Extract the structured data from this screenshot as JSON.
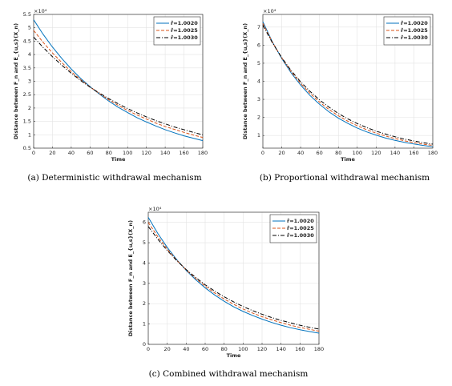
{
  "chart_data": [
    {
      "type": "line",
      "caption": "(a) Deterministic withdrawal mechanism",
      "xlabel": "Time",
      "ylabel": "Distance between F_n and E_{u,s}(X_n)",
      "y_multiplier": "×10⁴",
      "x": [
        0,
        10,
        20,
        30,
        40,
        50,
        60,
        70,
        80,
        90,
        100,
        110,
        120,
        130,
        140,
        150,
        160,
        170,
        180
      ],
      "xlim": [
        0,
        180
      ],
      "xticks": [
        0,
        20,
        40,
        60,
        80,
        100,
        120,
        140,
        160,
        180
      ],
      "ylim": [
        0.5,
        5.5
      ],
      "yticks": [
        0.5,
        1,
        1.5,
        2,
        2.5,
        3,
        3.5,
        4,
        4.5,
        5,
        5.5
      ],
      "grid": true,
      "legend": "upper right",
      "series": [
        {
          "name": "r̂=1.0020",
          "color": "#0072bd",
          "style": "solid",
          "values": [
            5.3,
            4.76,
            4.28,
            3.85,
            3.46,
            3.11,
            2.8,
            2.52,
            2.26,
            2.03,
            1.83,
            1.64,
            1.48,
            1.33,
            1.19,
            1.07,
            0.96,
            0.87,
            0.78
          ]
        },
        {
          "name": "r̂=1.0025",
          "color": "#d95319",
          "style": "dashed",
          "values": [
            4.9,
            4.46,
            4.06,
            3.7,
            3.36,
            3.06,
            2.79,
            2.54,
            2.31,
            2.1,
            1.91,
            1.74,
            1.59,
            1.44,
            1.31,
            1.2,
            1.09,
            0.99,
            0.9
          ]
        },
        {
          "name": "r̂=1.0030",
          "color": "#000000",
          "style": "dashdot",
          "values": [
            4.65,
            4.27,
            3.92,
            3.6,
            3.3,
            3.03,
            2.78,
            2.56,
            2.35,
            2.16,
            1.98,
            1.82,
            1.67,
            1.53,
            1.41,
            1.29,
            1.19,
            1.09,
            1.0
          ]
        }
      ]
    },
    {
      "type": "line",
      "caption": "(b) Proportional withdrawal mechanism",
      "xlabel": "Time",
      "ylabel": "Distance between F_n and E_{u,s}(X_n)",
      "y_multiplier": "×10⁴",
      "x": [
        0,
        10,
        20,
        30,
        40,
        50,
        60,
        70,
        80,
        90,
        100,
        110,
        120,
        130,
        140,
        150,
        160,
        170,
        180
      ],
      "xlim": [
        0,
        180
      ],
      "xticks": [
        0,
        20,
        40,
        60,
        80,
        100,
        120,
        140,
        160,
        180
      ],
      "ylim": [
        0.3,
        7.7
      ],
      "yticks": [
        1,
        2,
        3,
        4,
        5,
        6,
        7
      ],
      "grid": true,
      "legend": "upper right",
      "series": [
        {
          "name": "r̂=1.0020",
          "color": "#0072bd",
          "style": "solid",
          "values": [
            7.3,
            6.19,
            5.26,
            4.46,
            3.79,
            3.21,
            2.73,
            2.31,
            1.96,
            1.67,
            1.41,
            1.2,
            1.02,
            0.86,
            0.73,
            0.62,
            0.53,
            0.45,
            0.38
          ]
        },
        {
          "name": "r̂=1.0025",
          "color": "#d95319",
          "style": "dashed",
          "values": [
            7.2,
            6.17,
            5.29,
            4.53,
            3.88,
            3.33,
            2.85,
            2.44,
            2.09,
            1.79,
            1.54,
            1.32,
            1.13,
            0.97,
            0.83,
            0.71,
            0.61,
            0.52,
            0.45
          ]
        },
        {
          "name": "r̂=1.0030",
          "color": "#000000",
          "style": "dashdot",
          "values": [
            7.1,
            6.14,
            5.31,
            4.59,
            3.97,
            3.44,
            2.97,
            2.57,
            2.22,
            1.92,
            1.66,
            1.44,
            1.24,
            1.08,
            0.93,
            0.8,
            0.7,
            0.6,
            0.52
          ]
        }
      ]
    },
    {
      "type": "line",
      "caption": "(c) Combined withdrawal mechanism",
      "xlabel": "Time",
      "ylabel": "Distance between F_n and E_{u,s}(X_n)",
      "y_multiplier": "×10⁴",
      "x": [
        0,
        10,
        20,
        30,
        40,
        50,
        60,
        70,
        80,
        90,
        100,
        110,
        120,
        130,
        140,
        150,
        160,
        170,
        180
      ],
      "xlim": [
        0,
        180
      ],
      "xticks": [
        0,
        20,
        40,
        60,
        80,
        100,
        120,
        140,
        160,
        180
      ],
      "ylim": [
        0,
        6.5
      ],
      "yticks": [
        0,
        1,
        2,
        3,
        4,
        5,
        6
      ],
      "grid": true,
      "legend": "upper right",
      "series": [
        {
          "name": "r̂=1.0020",
          "color": "#0072bd",
          "style": "solid",
          "values": [
            6.25,
            5.46,
            4.77,
            4.17,
            3.64,
            3.18,
            2.78,
            2.43,
            2.12,
            1.85,
            1.62,
            1.42,
            1.24,
            1.08,
            0.94,
            0.82,
            0.72,
            0.63,
            0.55
          ]
        },
        {
          "name": "r̂=1.0025",
          "color": "#d95319",
          "style": "dashed",
          "values": [
            6.0,
            5.3,
            4.69,
            4.14,
            3.66,
            3.24,
            2.86,
            2.53,
            2.23,
            1.97,
            1.74,
            1.54,
            1.36,
            1.21,
            1.07,
            0.94,
            0.83,
            0.74,
            0.65
          ]
        },
        {
          "name": "r̂=1.0030",
          "color": "#000000",
          "style": "dashdot",
          "values": [
            5.8,
            5.18,
            4.62,
            4.12,
            3.68,
            3.29,
            2.93,
            2.62,
            2.34,
            2.09,
            1.86,
            1.66,
            1.48,
            1.32,
            1.18,
            1.06,
            0.94,
            0.84,
            0.75
          ]
        }
      ]
    }
  ]
}
